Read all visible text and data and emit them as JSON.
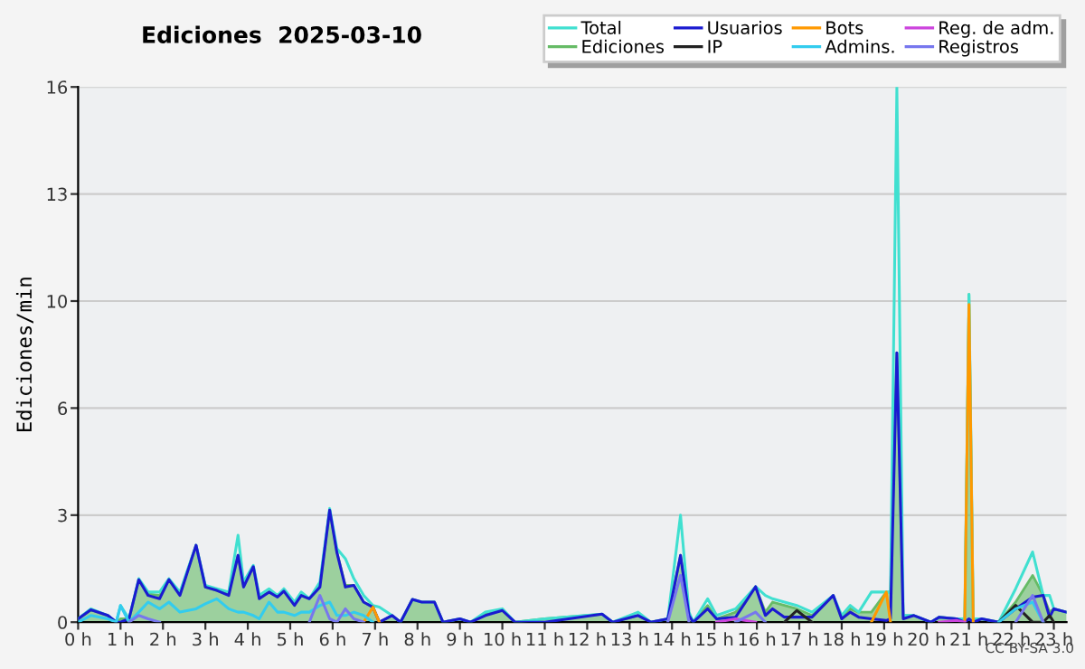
{
  "chart_data": {
    "type": "line",
    "title": "Ediciones  2025-03-10",
    "ylabel": "Ediciones/min",
    "annotations": [
      "CC BY-SA 3.0"
    ],
    "x": [
      0,
      0.3,
      0.7,
      0.9,
      1.0,
      1.2,
      1.43,
      1.65,
      1.92,
      2.14,
      2.4,
      2.78,
      3.0,
      3.27,
      3.55,
      3.77,
      3.9,
      4.13,
      4.27,
      4.5,
      4.7,
      4.85,
      5.1,
      5.26,
      5.45,
      5.7,
      5.93,
      6.1,
      6.3,
      6.5,
      6.73,
      6.95,
      7.1,
      7.4,
      7.6,
      7.88,
      8.1,
      8.4,
      8.6,
      9.0,
      9.25,
      9.6,
      10.0,
      10.3,
      11.0,
      12.35,
      12.6,
      13.2,
      13.5,
      13.9,
      14.2,
      14.4,
      14.5,
      14.84,
      15.05,
      15.5,
      15.97,
      16.2,
      16.37,
      16.65,
      16.94,
      17.3,
      17.8,
      18.0,
      18.2,
      18.4,
      18.7,
      19.05,
      19.15,
      19.3,
      19.45,
      19.7,
      20.1,
      20.3,
      20.7,
      20.9,
      21.0,
      21.1,
      21.3,
      21.7,
      22.1,
      22.5,
      22.75,
      22.9,
      23.0,
      23.3
    ],
    "series": [
      {
        "name": "Total",
        "color": "#40e0d0",
        "values": [
          0.1,
          0.4,
          0.2,
          0,
          0.5,
          0.1,
          1.3,
          0.9,
          0.9,
          1.3,
          0.9,
          2.3,
          1.1,
          1.0,
          0.9,
          2.6,
          1.2,
          1.7,
          0.8,
          1.0,
          0.8,
          1.0,
          0.6,
          0.9,
          0.7,
          1.2,
          3.4,
          2.2,
          1.9,
          1.3,
          0.8,
          0.5,
          0.45,
          0.2,
          0,
          0.68,
          0.6,
          0.6,
          0,
          0.1,
          0,
          0.3,
          0.4,
          0,
          0.1,
          0.24,
          0,
          0.3,
          0,
          0.1,
          3.2,
          0.3,
          0,
          0.7,
          0.2,
          0.4,
          1.06,
          0.8,
          0.7,
          0.6,
          0.5,
          0.3,
          0.8,
          0.2,
          0.5,
          0.3,
          0.9,
          0.9,
          0.9,
          16,
          0.2,
          0.2,
          0,
          0.15,
          0.1,
          0.1,
          9.8,
          0.1,
          0.1,
          0,
          1.0,
          2.1,
          0.8,
          0.8,
          0.4,
          0.3
        ]
      },
      {
        "name": "Ediciones",
        "type": "area",
        "color": "#66bb66",
        "values": [
          0.1,
          0.37,
          0.2,
          0,
          0.1,
          0.1,
          1.27,
          0.85,
          0.8,
          1.27,
          0.85,
          2.3,
          1.05,
          0.95,
          0.85,
          2.0,
          1.1,
          1.66,
          0.75,
          0.9,
          0.8,
          0.93,
          0.55,
          0.8,
          0.7,
          1.1,
          3.35,
          2.1,
          1.1,
          1.1,
          0.6,
          0.45,
          0,
          0.2,
          0,
          0.68,
          0.6,
          0.6,
          0,
          0.1,
          0,
          0.25,
          0.35,
          0,
          0.1,
          0.24,
          0,
          0.2,
          0,
          0.1,
          2.0,
          0.2,
          0,
          0.5,
          0.1,
          0.3,
          1.06,
          0.3,
          0.6,
          0.5,
          0.4,
          0.2,
          0.8,
          0.1,
          0.4,
          0.3,
          0.3,
          0.9,
          0.9,
          8.05,
          0.2,
          0.2,
          0,
          0.15,
          0.1,
          0.1,
          9.8,
          0.1,
          0.1,
          0,
          0.6,
          1.4,
          0.8,
          0.3,
          0.4,
          0.3
        ]
      },
      {
        "name": "Usuarios",
        "color": "#1a1ad0",
        "values": [
          0.1,
          0.37,
          0.2,
          0,
          0,
          0.1,
          1.27,
          0.8,
          0.7,
          1.27,
          0.8,
          2.3,
          1.05,
          0.95,
          0.8,
          2.0,
          1.05,
          1.66,
          0.7,
          0.9,
          0.75,
          0.93,
          0.5,
          0.8,
          0.7,
          1.05,
          3.35,
          2.08,
          1.05,
          1.1,
          0.6,
          0.45,
          0,
          0.2,
          0,
          0.68,
          0.6,
          0.6,
          0,
          0.1,
          0,
          0.2,
          0.35,
          0,
          0,
          0.24,
          0,
          0.2,
          0,
          0.1,
          2.0,
          0.2,
          0,
          0.4,
          0.1,
          0.15,
          1.06,
          0.2,
          0.4,
          0.15,
          0.15,
          0.15,
          0.8,
          0.1,
          0.3,
          0.15,
          0.1,
          0.05,
          0.1,
          8.05,
          0.1,
          0.2,
          0,
          0.15,
          0.1,
          0,
          0.1,
          0,
          0.1,
          0,
          0.4,
          0.75,
          0.8,
          0.15,
          0.4,
          0.3
        ]
      },
      {
        "name": "IP",
        "color": "#222222",
        "values": [
          null,
          null,
          null,
          null,
          null,
          null,
          null,
          null,
          null,
          null,
          null,
          null,
          null,
          null,
          null,
          null,
          null,
          null,
          null,
          null,
          null,
          null,
          null,
          null,
          null,
          null,
          null,
          null,
          null,
          null,
          null,
          null,
          null,
          null,
          null,
          null,
          null,
          null,
          null,
          null,
          null,
          null,
          null,
          null,
          null,
          null,
          null,
          null,
          null,
          null,
          null,
          null,
          null,
          null,
          null,
          null,
          null,
          null,
          null,
          0,
          0.35,
          0,
          null,
          null,
          null,
          null,
          null,
          null,
          null,
          null,
          null,
          null,
          null,
          null,
          null,
          null,
          null,
          null,
          null,
          0,
          0.5,
          0,
          0,
          0.2,
          0,
          null
        ]
      },
      {
        "name": "Bots",
        "color": "#ff9900",
        "values": [
          null,
          null,
          null,
          null,
          null,
          null,
          null,
          null,
          null,
          null,
          null,
          null,
          null,
          null,
          null,
          null,
          null,
          null,
          null,
          null,
          null,
          null,
          null,
          null,
          null,
          null,
          null,
          null,
          null,
          null,
          0,
          0.45,
          0,
          null,
          null,
          null,
          null,
          null,
          null,
          null,
          null,
          null,
          null,
          null,
          null,
          null,
          null,
          null,
          null,
          null,
          null,
          null,
          null,
          null,
          null,
          null,
          null,
          null,
          null,
          null,
          null,
          null,
          null,
          null,
          null,
          null,
          0,
          0.9,
          0,
          null,
          null,
          null,
          null,
          null,
          null,
          0,
          9.5,
          0,
          null,
          null,
          null,
          null,
          null,
          null,
          null,
          null
        ]
      },
      {
        "name": "Admins.",
        "color": "#33ccee",
        "values": [
          0,
          0.2,
          0.1,
          0,
          0.5,
          0,
          0.3,
          0.6,
          0.4,
          0.6,
          0.3,
          0.4,
          0.55,
          0.7,
          0.4,
          0.3,
          0.3,
          0.2,
          0.1,
          0.6,
          0.3,
          0.3,
          0.2,
          0.3,
          0.3,
          0.5,
          0.6,
          0.2,
          0.2,
          0.3,
          0.2,
          0,
          null,
          null,
          null,
          null,
          null,
          null,
          null,
          null,
          null,
          null,
          null,
          null,
          null,
          null,
          null,
          null,
          null,
          null,
          null,
          null,
          null,
          null,
          null,
          null,
          null,
          null,
          null,
          null,
          null,
          null,
          null,
          null,
          null,
          null,
          null,
          null,
          null,
          null,
          null,
          null,
          null,
          null,
          null,
          null,
          null,
          null,
          null,
          0,
          0.4,
          0.6,
          0,
          null,
          null,
          null
        ]
      },
      {
        "name": "Reg. de adm.",
        "color": "#cc44dd",
        "values": [
          null,
          null,
          null,
          null,
          null,
          null,
          null,
          null,
          null,
          null,
          null,
          null,
          null,
          null,
          null,
          null,
          null,
          null,
          null,
          null,
          null,
          null,
          null,
          null,
          null,
          null,
          null,
          null,
          null,
          null,
          null,
          null,
          null,
          null,
          null,
          null,
          null,
          null,
          null,
          null,
          null,
          null,
          null,
          null,
          null,
          null,
          null,
          null,
          null,
          null,
          null,
          null,
          null,
          null,
          0,
          0.1,
          0,
          null,
          null,
          null,
          null,
          null,
          null,
          null,
          null,
          null,
          null,
          null,
          null,
          null,
          null,
          null,
          null,
          0,
          0.05,
          0,
          null,
          null,
          null,
          null,
          null,
          null,
          null,
          null,
          null,
          null
        ]
      },
      {
        "name": "Registros",
        "color": "#7777ee",
        "values": [
          null,
          null,
          null,
          null,
          null,
          0,
          0.2,
          0.1,
          0,
          null,
          null,
          null,
          null,
          null,
          null,
          null,
          null,
          null,
          null,
          null,
          null,
          null,
          null,
          null,
          0,
          0.8,
          0.1,
          0,
          0.4,
          0.1,
          0,
          null,
          null,
          null,
          null,
          null,
          null,
          null,
          null,
          null,
          null,
          null,
          null,
          null,
          null,
          null,
          null,
          null,
          null,
          0,
          1.4,
          0,
          null,
          null,
          null,
          0,
          0.3,
          0,
          null,
          null,
          null,
          null,
          null,
          null,
          null,
          null,
          null,
          null,
          null,
          null,
          null,
          null,
          null,
          null,
          null,
          null,
          null,
          null,
          null,
          null,
          0,
          0.8,
          0,
          null,
          null,
          null
        ]
      }
    ],
    "xlim": [
      0,
      23.3
    ],
    "xticks": [
      {
        "value": 0,
        "label": "0 h"
      },
      {
        "value": 1,
        "label": "1 h"
      },
      {
        "value": 2,
        "label": "2 h"
      },
      {
        "value": 3,
        "label": "3 h"
      },
      {
        "value": 4,
        "label": "4 h"
      },
      {
        "value": 5,
        "label": "5 h"
      },
      {
        "value": 6,
        "label": "6 h"
      },
      {
        "value": 7,
        "label": "7 h"
      },
      {
        "value": 8,
        "label": "8 h"
      },
      {
        "value": 9,
        "label": "9 h"
      },
      {
        "value": 10,
        "label": "10 h"
      },
      {
        "value": 11,
        "label": "11 h"
      },
      {
        "value": 12,
        "label": "12 h"
      },
      {
        "value": 13,
        "label": "13 h"
      },
      {
        "value": 14,
        "label": "14 h"
      },
      {
        "value": 15,
        "label": "15 h"
      },
      {
        "value": 16,
        "label": "16 h"
      },
      {
        "value": 17,
        "label": "17 h"
      },
      {
        "value": 18,
        "label": "18 h"
      },
      {
        "value": 19,
        "label": "19 h"
      },
      {
        "value": 20,
        "label": "20 h"
      },
      {
        "value": 21,
        "label": "21 h"
      },
      {
        "value": 22,
        "label": "22 h"
      },
      {
        "value": 23,
        "label": "23 h"
      }
    ],
    "ylim": [
      0,
      16
    ],
    "yticks": [
      0,
      {
        "value": 3.2,
        "label": "3"
      },
      {
        "value": 6.4,
        "label": "6"
      },
      {
        "value": 9.6,
        "label": "10"
      },
      {
        "value": 12.8,
        "label": "13"
      },
      16
    ],
    "grid": "y",
    "legend": "top right",
    "marker": "none",
    "line_style": "solid"
  }
}
